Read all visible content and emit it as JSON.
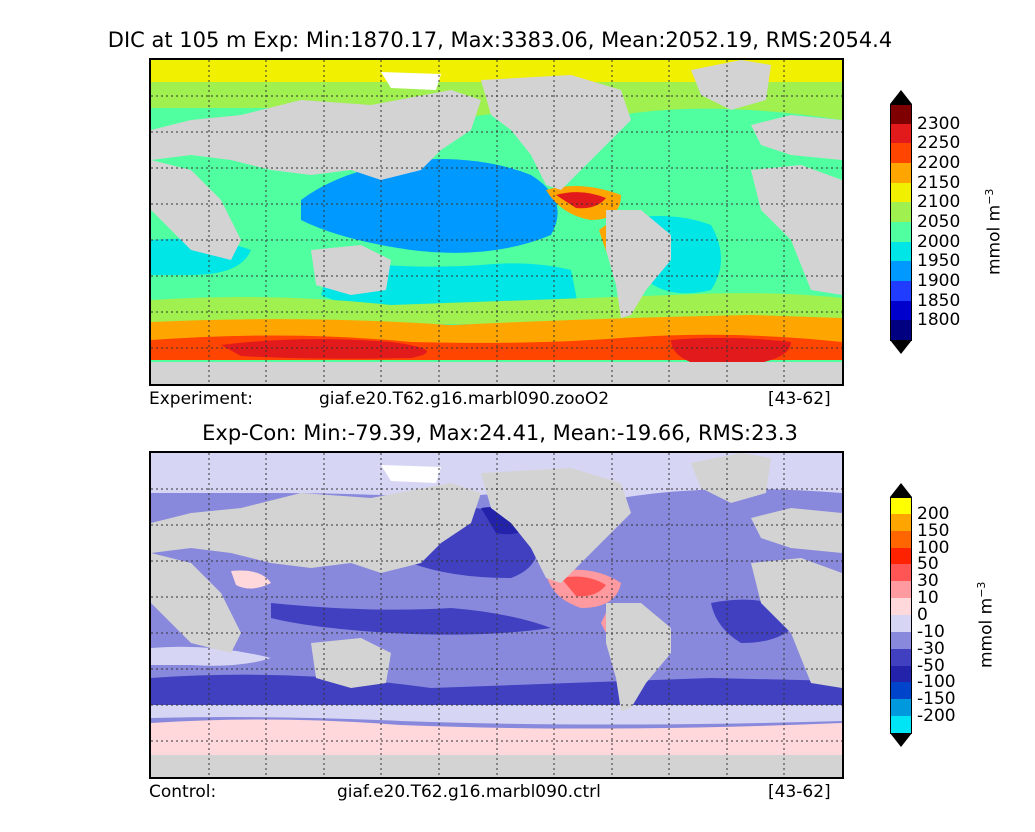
{
  "panels": [
    {
      "title": "DIC at 105 m Exp: Min:1870.17, Max:3383.06, Mean:2052.19, RMS:2054.4",
      "footer_left": "Experiment:",
      "footer_mid": "giaf.e20.T62.g16.marbl090.zooO2",
      "footer_right": "[43-62]",
      "colorbar": {
        "labels": [
          "2300",
          "2250",
          "2200",
          "2150",
          "2100",
          "2050",
          "2000",
          "1950",
          "1900",
          "1850",
          "1800"
        ],
        "colors": [
          "#7f0000",
          "#e31a1c",
          "#ff4500",
          "#ffa500",
          "#f0f000",
          "#a0f050",
          "#50ffa0",
          "#00e5e5",
          "#0099ff",
          "#1f3cff",
          "#0000cc",
          "#000080"
        ],
        "over_color": "#000000",
        "under_color": "#000000",
        "unit": "mmol m",
        "unit_sup": "−3"
      }
    },
    {
      "title": "Exp-Con: Min:-79.39, Max:24.41, Mean:-19.66, RMS:23.3",
      "footer_left": "Control:",
      "footer_mid": "giaf.e20.T62.g16.marbl090.ctrl",
      "footer_right": "[43-62]",
      "colorbar": {
        "labels": [
          "200",
          "150",
          "100",
          "50",
          "30",
          "10",
          "0",
          "-10",
          "-30",
          "-50",
          "-100",
          "-150",
          "-200"
        ],
        "colors": [
          "#ffff00",
          "#ffa500",
          "#ff6600",
          "#ff2200",
          "#ff5555",
          "#ff9aa0",
          "#ffd8dc",
          "#d6d6f4",
          "#8888dd",
          "#4040c0",
          "#2222aa",
          "#0044cc",
          "#0099dd",
          "#00e5f5"
        ],
        "over_color": "#000000",
        "under_color": "#000000",
        "unit": "mmol m",
        "unit_sup": "−3"
      }
    }
  ],
  "map_colors": {
    "land": "#d3d3d3",
    "ice": "#ffffff",
    "grid": "#333333"
  }
}
